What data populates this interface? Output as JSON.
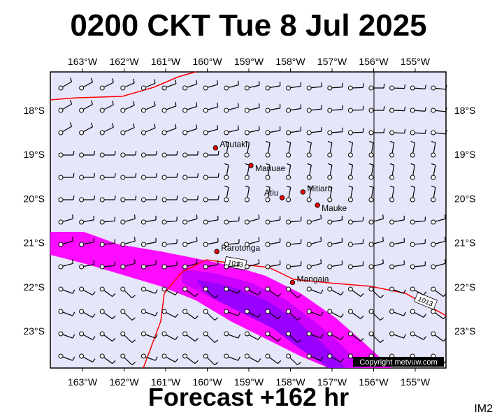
{
  "title": "0200 CKT Tue 8 Jul 2025",
  "footer": "Forecast +162 hr",
  "code": "IM2",
  "copyright": "Copyright metvuw.com",
  "lon_labels": [
    "163°W",
    "162°W",
    "161°W",
    "160°W",
    "159°W",
    "158°W",
    "157°W",
    "156°W",
    "155°W"
  ],
  "lat_labels": [
    "18°S",
    "19°S",
    "20°S",
    "21°S",
    "22°S",
    "23°S"
  ],
  "places": [
    {
      "name": "Aitutaki",
      "lon": -159.8,
      "lat": -18.85
    },
    {
      "name": "Manuae",
      "lon": -158.95,
      "lat": -19.25
    },
    {
      "name": "Mitiaro",
      "lon": -157.7,
      "lat": -19.85
    },
    {
      "name": "Atiu",
      "lon": -158.2,
      "lat": -19.98
    },
    {
      "name": "Mauke",
      "lon": -157.35,
      "lat": -20.15
    },
    {
      "name": "Rarotonga",
      "lon": -159.77,
      "lat": -21.2
    },
    {
      "name": "Mangaia",
      "lon": -157.95,
      "lat": -21.9
    }
  ],
  "isobars": [
    {
      "label": "1013"
    },
    {
      "label": "1013"
    }
  ],
  "colors": {
    "background": "#e6e6fa",
    "rain_light": "#ff00ff",
    "rain_mid": "#cc00ff",
    "rain_heavy": "#9900ff",
    "isobar": "#ff0000",
    "island": "#ff0000"
  }
}
